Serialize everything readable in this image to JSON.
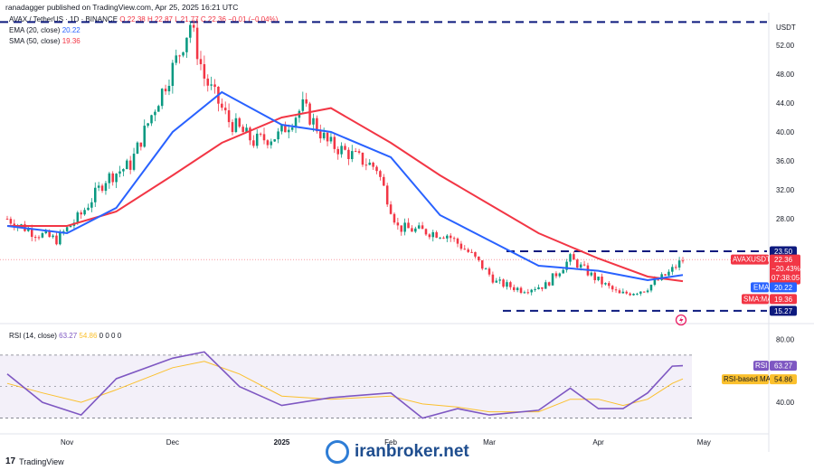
{
  "header": {
    "publisher": "ranadagger published on TradingView.com, Apr 25, 2025 16:21 UTC"
  },
  "legend": {
    "symbol": "AVAX / TetherUS · 1D · BINANCE",
    "ohlc": {
      "o": "O 22.38",
      "h": "H 22.87",
      "l": "L 21.77",
      "c": "C 22.36",
      "chg": "−0.01 (−0.04%)"
    },
    "ema": {
      "label": "EMA (20, close)",
      "value": "20.22"
    },
    "sma": {
      "label": "SMA (50, close)",
      "value": "19.36"
    },
    "rsi": {
      "label": "RSI (14, close)",
      "value": "63.27",
      "ma": "54.86",
      "zeros": "0 0 0 0"
    }
  },
  "axis": {
    "currency": "USDT",
    "price_ticks": [
      "52.00",
      "48.00",
      "44.00",
      "40.00",
      "36.00",
      "32.00",
      "28.00"
    ],
    "rsi_ticks": [
      "80.00",
      "40.00"
    ],
    "x_ticks": [
      "Nov",
      "Dec",
      "2025",
      "Feb",
      "Mar",
      "Apr",
      "May"
    ]
  },
  "tags": {
    "resist": "23.50",
    "last_name": "AVAXUSDT",
    "last_price": "22.36",
    "last_chg": "−20.43%",
    "last_time": "07:38:05",
    "ema_name": "EMA",
    "ema_val": "20.22",
    "sma_name": "SMA:MA",
    "sma_val": "19.36",
    "support": "15.27",
    "rsi_name": "RSI",
    "rsi_val": "63.27",
    "rsi_ma_name": "RSI-based MA",
    "rsi_ma_val": "54.86"
  },
  "footer": {
    "logo": "TradingView",
    "watermark": "iranbroker.net"
  },
  "colors": {
    "up": "#089981",
    "down": "#f23645",
    "ema": "#2962ff",
    "sma": "#f23645",
    "rsi": "#7e57c2",
    "rsi_ma": "#fbc02d",
    "level": "#0d1a7e"
  },
  "chart_data": {
    "type": "line",
    "title": "AVAX / TetherUS · 1D · BINANCE",
    "x_range": [
      "2024-10-15",
      "2025-04-25"
    ],
    "x_ticks": [
      "Nov",
      "Dec",
      "2025",
      "Feb",
      "Mar",
      "Apr",
      "May"
    ],
    "ylim": [
      13.5,
      56.5
    ],
    "series": [
      {
        "name": "AVAXUSDT (close)",
        "x": [
          "2024-10-15",
          "2024-10-22",
          "2024-10-29",
          "2024-11-05",
          "2024-11-12",
          "2024-11-19",
          "2024-11-26",
          "2024-12-03",
          "2024-12-06",
          "2024-12-10",
          "2024-12-17",
          "2024-12-24",
          "2024-12-31",
          "2025-01-07",
          "2025-01-14",
          "2025-01-21",
          "2025-01-28",
          "2025-02-03",
          "2025-02-10",
          "2025-02-17",
          "2025-02-24",
          "2025-03-03",
          "2025-03-10",
          "2025-03-17",
          "2025-03-24",
          "2025-03-31",
          "2025-04-07",
          "2025-04-14",
          "2025-04-21",
          "2025-04-25"
        ],
        "values": [
          28.0,
          26.2,
          25.1,
          28.6,
          33.5,
          35.5,
          43.5,
          51.0,
          55.0,
          47.5,
          41.5,
          38.7,
          39.5,
          43.5,
          38.5,
          36.8,
          35.0,
          26.8,
          26.3,
          25.8,
          23.0,
          19.2,
          18.2,
          18.8,
          22.5,
          19.8,
          17.5,
          18.2,
          20.5,
          22.36
        ]
      },
      {
        "name": "EMA (20, close)",
        "x": [
          "2024-10-15",
          "2024-11-01",
          "2024-11-15",
          "2024-12-01",
          "2024-12-15",
          "2025-01-01",
          "2025-01-15",
          "2025-02-01",
          "2025-02-15",
          "2025-03-01",
          "2025-03-15",
          "2025-04-01",
          "2025-04-15",
          "2025-04-25"
        ],
        "values": [
          27.0,
          26.0,
          29.5,
          40.0,
          45.5,
          41.0,
          40.0,
          36.5,
          28.5,
          25.0,
          21.5,
          20.8,
          19.5,
          20.22
        ]
      },
      {
        "name": "SMA (50, close)",
        "x": [
          "2024-10-15",
          "2024-11-01",
          "2024-11-15",
          "2024-12-01",
          "2024-12-15",
          "2025-01-01",
          "2025-01-15",
          "2025-02-01",
          "2025-02-15",
          "2025-03-01",
          "2025-03-15",
          "2025-04-01",
          "2025-04-15",
          "2025-04-25"
        ],
        "values": [
          27.0,
          27.0,
          29.0,
          34.0,
          38.5,
          42.0,
          43.3,
          38.5,
          34.0,
          30.0,
          26.0,
          22.5,
          20.0,
          19.36
        ]
      }
    ],
    "levels": [
      {
        "name": "resistance",
        "value": 23.5
      },
      {
        "name": "support",
        "value": 15.27
      }
    ],
    "rsi": {
      "ylim": [
        20,
        90
      ],
      "ticks": [
        80,
        40
      ],
      "band": [
        30,
        70
      ],
      "x": [
        "2024-10-15",
        "2024-10-25",
        "2024-11-05",
        "2024-11-15",
        "2024-12-01",
        "2024-12-10",
        "2024-12-20",
        "2025-01-01",
        "2025-01-15",
        "2025-02-01",
        "2025-02-10",
        "2025-02-20",
        "2025-03-01",
        "2025-03-15",
        "2025-03-24",
        "2025-04-01",
        "2025-04-08",
        "2025-04-15",
        "2025-04-22",
        "2025-04-25"
      ],
      "values": [
        58,
        40,
        32,
        55,
        68,
        72,
        50,
        38,
        43,
        46,
        30,
        36,
        32,
        35,
        49,
        36,
        36,
        46,
        63,
        63.27
      ],
      "ma": [
        52,
        46,
        40,
        48,
        62,
        66,
        58,
        44,
        42,
        44,
        39,
        37,
        34,
        34,
        42,
        42,
        38,
        42,
        52,
        54.86
      ]
    }
  }
}
